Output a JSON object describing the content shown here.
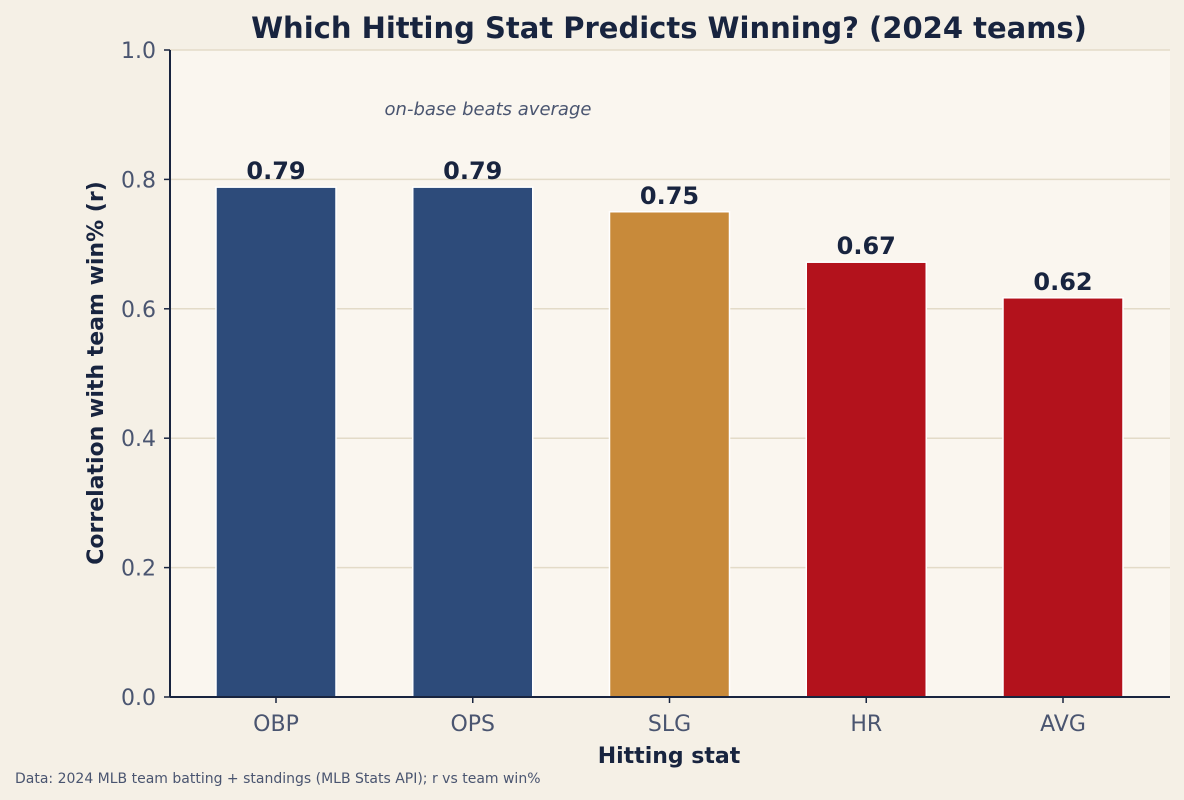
{
  "chart_data": {
    "type": "bar",
    "title": "Which Hitting Stat Predicts Winning? (2024 teams)",
    "xlabel": "Hitting stat",
    "ylabel": "Correlation with team win% (r)",
    "categories": [
      "OBP",
      "OPS",
      "SLG",
      "HR",
      "AVG"
    ],
    "values": [
      0.788,
      0.788,
      0.75,
      0.672,
      0.617
    ],
    "value_labels": [
      "0.79",
      "0.79",
      "0.75",
      "0.67",
      "0.62"
    ],
    "bar_colors": [
      "#2d4b7a",
      "#2d4b7a",
      "#c88a3a",
      "#b3121c",
      "#b3121c"
    ],
    "ylim": [
      0,
      1.0
    ],
    "yticks": [
      0.0,
      0.2,
      0.4,
      0.6,
      0.8,
      1.0
    ],
    "ytick_labels": [
      "0.0",
      "0.2",
      "0.4",
      "0.6",
      "0.8",
      "1.0"
    ],
    "grid": "horizontal",
    "annotation": "on-base beats average",
    "source": "Data: 2024 MLB team batting + standings (MLB Stats API); r vs team win%"
  },
  "colors": {
    "background": "#f5f0e6",
    "plot_background": "#faf6ef",
    "grid": "#e3dbc8",
    "axis": "#18243f"
  }
}
